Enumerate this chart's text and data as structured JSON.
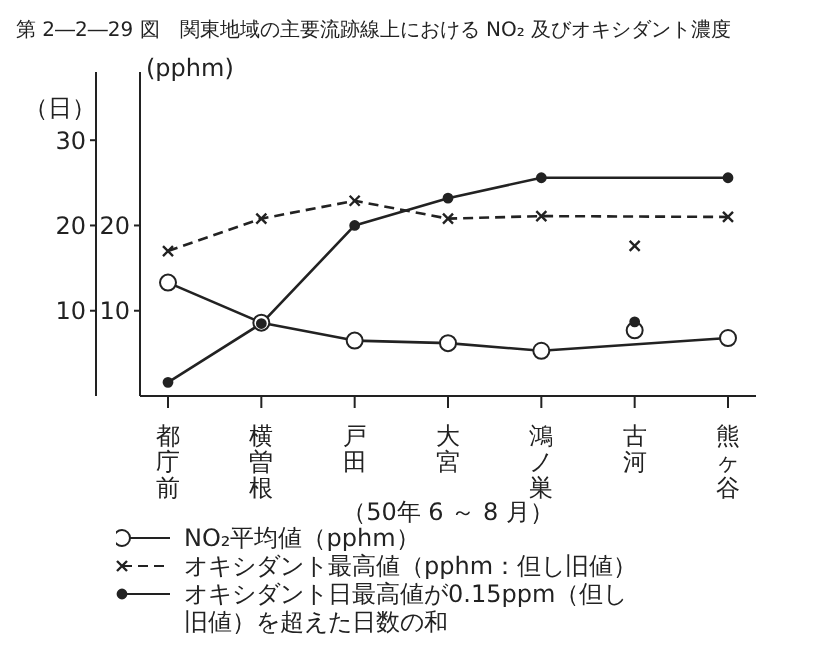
{
  "chart_data": {
    "type": "line",
    "title": "第 2―2―29 図　関東地域の主要流跡線上における NO₂ 及びオキシダント濃度",
    "xlabel": "（50年 6 ～ 8 月）",
    "ylabel": "（日）",
    "y2label": "(pphm)",
    "categories": [
      "都庁前",
      "横曽根",
      "戸田",
      "大宮",
      "鴻ノ巣",
      "古河",
      "熊ヶ谷"
    ],
    "series": [
      {
        "name": "NO₂平均値（pphm）",
        "color": "#222222",
        "axis": "y2",
        "marker": "circle",
        "line_style": "solid",
        "values": [
          13.3,
          8.6,
          6.5,
          6.2,
          5.3,
          null,
          6.8
        ]
      },
      {
        "name": "オキシダント最高値（pphm：但し旧値）",
        "color": "#222222",
        "axis": "y2",
        "marker": "cross",
        "line_style": "dashed",
        "values": [
          17,
          20.8,
          22.9,
          20.8,
          21.1,
          null,
          21
        ]
      },
      {
        "name": "オキシダント日最高値が0.15ppm（但し旧値）を超えた日数の和",
        "color": "#222222",
        "axis": "y",
        "marker": "circle",
        "line_style": "solid",
        "values": [
          1.6,
          8.5,
          20,
          23.2,
          25.6,
          null,
          25.6
        ]
      },
      {
        "type": "scatter",
        "color": "#222222",
        "axis": "y2",
        "marker": "circle",
        "values": [
          null,
          null,
          null,
          null,
          null,
          7.7,
          null
        ]
      },
      {
        "type": "scatter",
        "color": "#222222",
        "axis": "y2",
        "marker": "cross",
        "values": [
          null,
          null,
          null,
          null,
          null,
          17.6,
          null
        ]
      },
      {
        "type": "scatter",
        "color": "#222222",
        "axis": "y",
        "marker": "circle",
        "values": [
          null,
          null,
          null,
          null,
          null,
          8.7,
          null
        ]
      }
    ],
    "ylim": [
      0,
      38
    ],
    "yticks": [
      10,
      20,
      30
    ],
    "y2lim": [
      0,
      38
    ],
    "y2ticks": [
      10,
      20
    ],
    "legend": "bottom"
  }
}
